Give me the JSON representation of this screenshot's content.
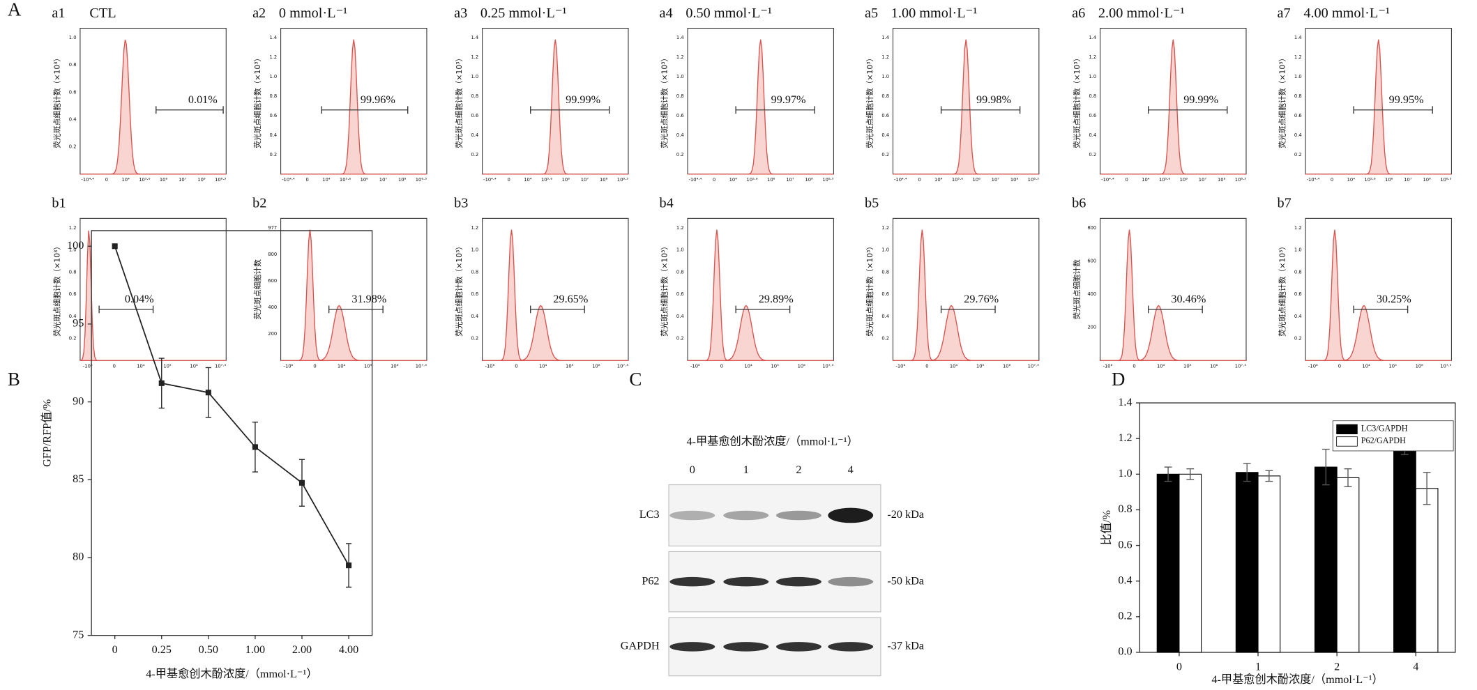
{
  "flow": {
    "label": "A",
    "y_label": "荧光斑点细胞计数（×10³）",
    "rows": [
      {
        "x_ticks": [
          "-10⁴·⁴",
          "0",
          "10⁴",
          "10⁵·⁶",
          "10⁶",
          "10⁷",
          "10⁸",
          "10⁸·³"
        ],
        "panels": [
          {
            "id": "a1",
            "title": "CTL",
            "y_ticks": [
              "0.2",
              "0.4",
              "0.6",
              "0.8",
              "1.0"
            ],
            "percent": "0.01%"
          },
          {
            "id": "a2",
            "title": "0 mmol·L⁻¹",
            "y_ticks": [
              "0.2",
              "0.4",
              "0.6",
              "0.8",
              "1.0",
              "1.2",
              "1.4"
            ],
            "percent": "99.96%"
          },
          {
            "id": "a3",
            "title": "0.25 mmol·L⁻¹",
            "y_ticks": [
              "0.2",
              "0.4",
              "0.6",
              "0.8",
              "1.0",
              "1.2",
              "1.4"
            ],
            "percent": "99.99%"
          },
          {
            "id": "a4",
            "title": "0.50 mmol·L⁻¹",
            "y_ticks": [
              "0.2",
              "0.4",
              "0.6",
              "0.8",
              "1.0",
              "1.2",
              "1.4"
            ],
            "percent": "99.97%"
          },
          {
            "id": "a5",
            "title": "1.00 mmol·L⁻¹",
            "y_ticks": [
              "0.2",
              "0.4",
              "0.6",
              "0.8",
              "1.0",
              "1.2",
              "1.4"
            ],
            "percent": "99.98%"
          },
          {
            "id": "a6",
            "title": "2.00 mmol·L⁻¹",
            "y_ticks": [
              "0.2",
              "0.4",
              "0.6",
              "0.8",
              "1.0",
              "1.2",
              "1.4"
            ],
            "percent": "99.99%"
          },
          {
            "id": "a7",
            "title": "4.00 mmol·L⁻¹",
            "y_ticks": [
              "0.2",
              "0.4",
              "0.6",
              "0.8",
              "1.0",
              "1.2",
              "1.4"
            ],
            "percent": "99.95%"
          }
        ]
      },
      {
        "x_ticks": [
          "-10⁶",
          "0",
          "10⁴",
          "10⁵",
          "10⁶",
          "10⁷·³"
        ],
        "panels": [
          {
            "id": "b1",
            "title": "",
            "y_ticks": [
              "0.2",
              "0.4",
              "0.6",
              "0.8",
              "1.0",
              "1.2"
            ],
            "percent": "0.04%"
          },
          {
            "id": "b2",
            "title": "",
            "y_label": "荧光斑点细胞计数",
            "y_ticks": [
              "200",
              "400",
              "600",
              "800",
              "977"
            ],
            "percent": "31.98%"
          },
          {
            "id": "b3",
            "title": "",
            "y_ticks": [
              "0.2",
              "0.4",
              "0.6",
              "0.8",
              "1.0",
              "1.2"
            ],
            "percent": "29.65%"
          },
          {
            "id": "b4",
            "title": "",
            "y_ticks": [
              "0.2",
              "0.4",
              "0.6",
              "0.8",
              "1.0",
              "1.2"
            ],
            "percent": "29.89%"
          },
          {
            "id": "b5",
            "title": "",
            "y_ticks": [
              "0.2",
              "0.4",
              "0.6",
              "0.8",
              "1.0",
              "1.2"
            ],
            "percent": "29.76%"
          },
          {
            "id": "b6",
            "title": "",
            "y_label": "荧光斑点细胞计数",
            "y_ticks": [
              "200",
              "400",
              "600",
              "800"
            ],
            "percent": "30.46%"
          },
          {
            "id": "b7",
            "title": "",
            "y_ticks": [
              "0.2",
              "0.4",
              "0.6",
              "0.8",
              "1.0",
              "1.2"
            ],
            "percent": "30.25%"
          }
        ]
      }
    ]
  },
  "western_blot": {
    "label": "C",
    "title": "4-甲基愈创木酚浓度/（mmol·L⁻¹）",
    "lanes": [
      "0",
      "1",
      "2",
      "4"
    ],
    "rows": [
      {
        "name": "LC3",
        "size": "-20 kDa"
      },
      {
        "name": "P62",
        "size": "-50 kDa"
      },
      {
        "name": "GAPDH",
        "size": "-37 kDa"
      }
    ]
  },
  "chart_data": [
    {
      "type": "line",
      "panel_label": "B",
      "y_label": "GFP/RFP值/%",
      "x_label": "4-甲基愈创木酚浓度/（mmol·L⁻¹）",
      "categories": [
        "0",
        "0.25",
        "0.50",
        "1.00",
        "2.00",
        "4.00"
      ],
      "values": [
        100,
        91.2,
        90.6,
        87.1,
        84.8,
        79.5
      ],
      "errors": [
        0,
        1.6,
        1.6,
        1.6,
        1.5,
        1.4
      ],
      "color": "#222222",
      "ylim": [
        75,
        101
      ],
      "yticks": [
        75,
        80,
        85,
        90,
        95,
        100
      ]
    },
    {
      "type": "bar",
      "panel_label": "D",
      "y_label": "比值/%",
      "x_label": "4-甲基愈创木酚浓度/（mmol·L⁻¹）",
      "categories": [
        "0",
        "1",
        "2",
        "4"
      ],
      "series": [
        {
          "name": "LC3/GAPDH",
          "color": "#000000",
          "values": [
            1.0,
            1.01,
            1.04,
            1.15
          ],
          "errors": [
            0.04,
            0.05,
            0.1,
            0.04
          ]
        },
        {
          "name": "P62/GAPDH",
          "color": "#ffffff",
          "values": [
            1.0,
            0.99,
            0.98,
            0.92
          ],
          "errors": [
            0.03,
            0.03,
            0.05,
            0.09
          ]
        }
      ],
      "ylim": [
        0,
        1.4
      ],
      "yticks": [
        {
          "value": 0,
          "label": "0.0"
        },
        0.2,
        0.4,
        0.6,
        0.8,
        {
          "value": 1,
          "label": "1.0"
        },
        1.2,
        1.4
      ],
      "legend": "upper right"
    }
  ]
}
